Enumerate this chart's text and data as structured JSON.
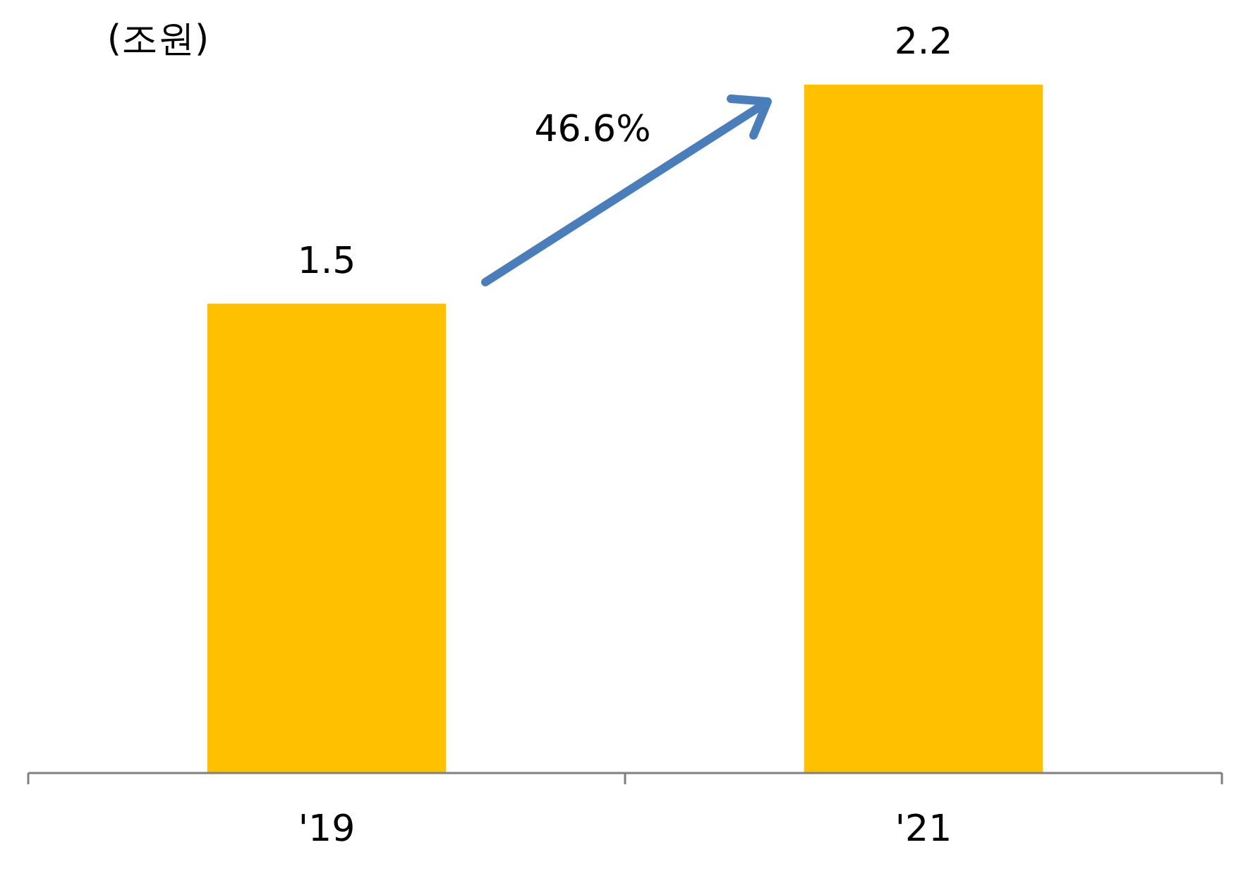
{
  "chart_data": {
    "type": "bar",
    "ylabel": "(조원)",
    "categories": [
      "'19",
      "'21"
    ],
    "values": [
      1.5,
      2.2
    ],
    "color": "#ffc000",
    "data_labels": true,
    "annotations": [
      "46.6%"
    ]
  }
}
